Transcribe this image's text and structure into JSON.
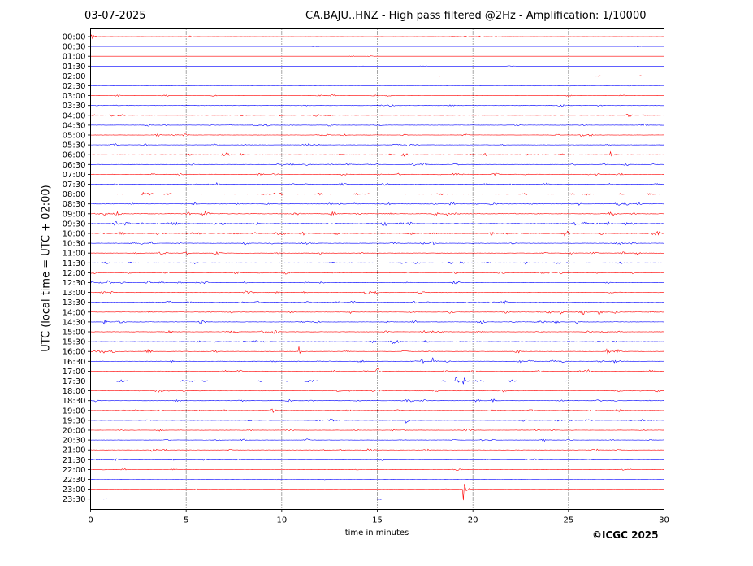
{
  "header": {
    "date": "03-07-2025",
    "title": "CA.BAJU..HNZ - High pass filtered @2Hz - Amplification: 1/10000"
  },
  "footer": {
    "copyright": "©ICGC 2025"
  },
  "colors": {
    "trace_a": "#ff0000",
    "trace_b": "#0000ff",
    "grid": "#000000",
    "background": "#ffffff"
  },
  "chart_data": {
    "type": "line",
    "title": "CA.BAJU..HNZ - High pass filtered @2Hz - Amplification: 1/10000",
    "xlabel": "time in minutes",
    "ylabel": "UTC (local time = UTC + 02:00)",
    "xlim": [
      0,
      30
    ],
    "x_ticks": [
      "0",
      "5",
      "10",
      "15",
      "20",
      "25",
      "30"
    ],
    "grid": "vertical dotted lines at 5, 10, 15, 20 and 25 minutes",
    "trace_colors_alternate": [
      "red",
      "blue"
    ],
    "rows": [
      "00:00",
      "00:30",
      "01:00",
      "01:30",
      "02:00",
      "02:30",
      "03:00",
      "03:30",
      "04:00",
      "04:30",
      "05:00",
      "05:30",
      "06:00",
      "06:30",
      "07:00",
      "07:30",
      "08:00",
      "08:30",
      "09:00",
      "09:30",
      "10:00",
      "10:30",
      "11:00",
      "11:30",
      "12:00",
      "12:30",
      "13:00",
      "13:30",
      "14:00",
      "14:30",
      "15:00",
      "15:30",
      "16:00",
      "16:30",
      "17:00",
      "17:30",
      "18:00",
      "18:30",
      "19:00",
      "19:30",
      "20:00",
      "20:30",
      "21:00",
      "21:30",
      "22:00",
      "22:30",
      "23:00",
      "23:30"
    ],
    "activity": [
      0.5,
      0.2,
      0.2,
      0.3,
      0.3,
      0.3,
      0.9,
      1.0,
      1.2,
      1.3,
      1.3,
      1.3,
      1.4,
      1.5,
      1.5,
      1.5,
      1.6,
      1.8,
      2.2,
      2.3,
      2.2,
      1.6,
      1.5,
      1.5,
      1.6,
      1.6,
      1.5,
      1.6,
      1.5,
      1.6,
      1.6,
      1.5,
      1.5,
      1.6,
      1.5,
      1.5,
      1.5,
      1.4,
      1.4,
      1.4,
      1.3,
      1.2,
      1.2,
      1.0,
      0.8,
      0.3,
      0.2,
      0.2
    ],
    "events": [
      {
        "row": "00:00",
        "minute": 0.05,
        "amplitude": 6
      },
      {
        "row": "06:00",
        "minute": 27.2,
        "amplitude": 6
      },
      {
        "row": "12:30",
        "minute": 0.35,
        "amplitude": 5
      },
      {
        "row": "12:30",
        "minute": 0.9,
        "amplitude": 4
      },
      {
        "row": "14:00",
        "minute": 24.6,
        "amplitude": 5
      },
      {
        "row": "14:00",
        "minute": 25.7,
        "amplitude": 4
      },
      {
        "row": "14:00",
        "minute": 26.6,
        "amplitude": 4
      },
      {
        "row": "14:30",
        "minute": 0.7,
        "amplitude": 6
      },
      {
        "row": "16:00",
        "minute": 10.9,
        "amplitude": 6
      },
      {
        "row": "16:00",
        "minute": 27.0,
        "amplitude": 5
      },
      {
        "row": "16:30",
        "minute": 17.3,
        "amplitude": 6
      },
      {
        "row": "16:30",
        "minute": 17.9,
        "amplitude": 5
      },
      {
        "row": "17:30",
        "minute": 19.1,
        "amplitude": 6
      },
      {
        "row": "17:30",
        "minute": 19.5,
        "amplitude": 7
      },
      {
        "row": "18:30",
        "minute": 21.0,
        "amplitude": 5
      },
      {
        "row": "19:30",
        "minute": 16.5,
        "amplitude": 4
      },
      {
        "row": "23:00",
        "minute": 19.5,
        "amplitude": 14
      }
    ],
    "gaps": [
      {
        "row": "23:30",
        "from": 17.4,
        "to": 19.4
      },
      {
        "row": "23:30",
        "from": 19.6,
        "to": 24.4
      },
      {
        "row": "23:30",
        "from": 25.3,
        "to": 25.6
      }
    ]
  }
}
